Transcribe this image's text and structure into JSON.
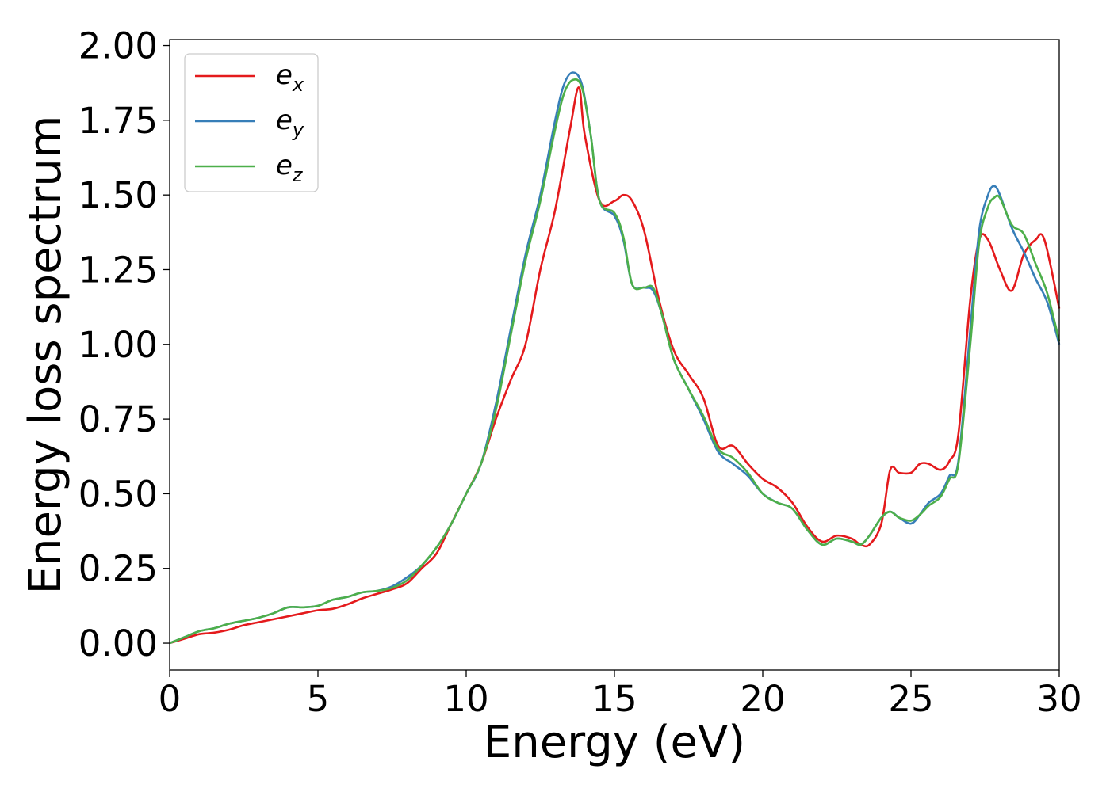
{
  "chart_data": {
    "type": "line",
    "xlabel": "Energy (eV)",
    "ylabel": "Energy loss spectrum",
    "xlim": [
      0,
      30
    ],
    "ylim": [
      -0.09,
      2.02
    ],
    "grid": false,
    "legend_position": "top-left",
    "x_ticks": [
      "0",
      "5",
      "10",
      "15",
      "20",
      "25",
      "30"
    ],
    "y_ticks": [
      "0.00",
      "0.25",
      "0.50",
      "0.75",
      "1.00",
      "1.25",
      "1.50",
      "1.75",
      "2.00"
    ],
    "series": [
      {
        "name": "e_x",
        "legend_base": "e",
        "legend_sub": "x",
        "color": "#e41a1c",
        "x": [
          0,
          0.5,
          1,
          1.5,
          2,
          2.5,
          3,
          3.5,
          4,
          4.5,
          5,
          5.5,
          6,
          6.5,
          7,
          7.5,
          8,
          8.5,
          9,
          9.5,
          10,
          10.5,
          11,
          11.5,
          12,
          12.5,
          13,
          13.5,
          13.8,
          14,
          14.5,
          15,
          15.3,
          15.6,
          16,
          16.5,
          17,
          17.5,
          18,
          18.5,
          19,
          19.5,
          20,
          20.5,
          21,
          21.5,
          22,
          22.5,
          23,
          23.3,
          23.6,
          24,
          24.3,
          24.6,
          25,
          25.3,
          25.6,
          26,
          26.3,
          26.6,
          27,
          27.3,
          27.6,
          28,
          28.4,
          28.8,
          29.2,
          29.5,
          30
        ],
        "y": [
          0,
          0.015,
          0.03,
          0.035,
          0.045,
          0.06,
          0.07,
          0.08,
          0.09,
          0.1,
          0.11,
          0.115,
          0.13,
          0.15,
          0.165,
          0.18,
          0.2,
          0.25,
          0.3,
          0.4,
          0.5,
          0.6,
          0.75,
          0.88,
          1.0,
          1.25,
          1.45,
          1.72,
          1.86,
          1.7,
          1.48,
          1.48,
          1.5,
          1.48,
          1.38,
          1.15,
          0.98,
          0.9,
          0.82,
          0.66,
          0.66,
          0.6,
          0.55,
          0.52,
          0.47,
          0.39,
          0.34,
          0.36,
          0.35,
          0.33,
          0.33,
          0.4,
          0.58,
          0.57,
          0.57,
          0.6,
          0.6,
          0.58,
          0.61,
          0.7,
          1.15,
          1.35,
          1.35,
          1.25,
          1.18,
          1.3,
          1.35,
          1.35,
          1.12
        ]
      },
      {
        "name": "e_y",
        "legend_base": "e",
        "legend_sub": "y",
        "color": "#377eb8",
        "x": [
          0,
          0.5,
          1,
          1.5,
          2,
          2.5,
          3,
          3.5,
          4,
          4.5,
          5,
          5.5,
          6,
          6.5,
          7,
          7.5,
          8,
          8.5,
          9,
          9.5,
          10,
          10.5,
          11,
          11.5,
          12,
          12.5,
          13,
          13.3,
          13.6,
          13.9,
          14.2,
          14.5,
          15,
          15.3,
          15.6,
          16,
          16.3,
          16.6,
          17,
          17.5,
          18,
          18.5,
          19,
          19.5,
          20,
          20.5,
          21,
          21.5,
          22,
          22.5,
          23,
          23.3,
          23.6,
          24,
          24.3,
          24.6,
          25,
          25.3,
          25.6,
          26,
          26.3,
          26.6,
          27,
          27.3,
          27.6,
          27.8,
          28,
          28.4,
          28.8,
          29.2,
          29.6,
          30
        ],
        "y": [
          0,
          0.02,
          0.04,
          0.05,
          0.065,
          0.075,
          0.085,
          0.1,
          0.12,
          0.12,
          0.125,
          0.145,
          0.155,
          0.17,
          0.175,
          0.19,
          0.22,
          0.26,
          0.32,
          0.4,
          0.5,
          0.6,
          0.8,
          1.05,
          1.3,
          1.5,
          1.75,
          1.87,
          1.91,
          1.87,
          1.7,
          1.48,
          1.43,
          1.35,
          1.2,
          1.19,
          1.18,
          1.1,
          0.95,
          0.85,
          0.75,
          0.64,
          0.6,
          0.56,
          0.5,
          0.47,
          0.45,
          0.38,
          0.33,
          0.35,
          0.34,
          0.33,
          0.36,
          0.42,
          0.44,
          0.42,
          0.4,
          0.43,
          0.47,
          0.5,
          0.56,
          0.61,
          1.05,
          1.38,
          1.5,
          1.53,
          1.5,
          1.39,
          1.31,
          1.22,
          1.14,
          1.0
        ]
      },
      {
        "name": "e_z",
        "legend_base": "e",
        "legend_sub": "z",
        "color": "#4daf4a",
        "x": [
          0,
          0.5,
          1,
          1.5,
          2,
          2.5,
          3,
          3.5,
          4,
          4.5,
          5,
          5.5,
          6,
          6.5,
          7,
          7.5,
          8,
          8.5,
          9,
          9.5,
          10,
          10.5,
          11,
          11.5,
          12,
          12.5,
          13,
          13.3,
          13.6,
          13.9,
          14.2,
          14.5,
          15,
          15.3,
          15.6,
          16,
          16.3,
          16.6,
          17,
          17.5,
          18,
          18.5,
          19,
          19.5,
          20,
          20.5,
          21,
          21.5,
          22,
          22.5,
          23,
          23.3,
          23.6,
          24,
          24.3,
          24.6,
          25,
          25.3,
          25.6,
          26,
          26.3,
          26.6,
          27,
          27.3,
          27.6,
          27.8,
          28,
          28.4,
          28.8,
          29.2,
          29.6,
          30
        ],
        "y": [
          0,
          0.02,
          0.04,
          0.05,
          0.065,
          0.075,
          0.085,
          0.1,
          0.12,
          0.12,
          0.125,
          0.145,
          0.155,
          0.17,
          0.175,
          0.185,
          0.21,
          0.26,
          0.32,
          0.4,
          0.5,
          0.6,
          0.78,
          1.03,
          1.28,
          1.48,
          1.72,
          1.84,
          1.885,
          1.86,
          1.7,
          1.48,
          1.44,
          1.36,
          1.2,
          1.19,
          1.19,
          1.1,
          0.95,
          0.85,
          0.76,
          0.65,
          0.62,
          0.57,
          0.5,
          0.47,
          0.45,
          0.38,
          0.33,
          0.35,
          0.34,
          0.33,
          0.36,
          0.42,
          0.44,
          0.42,
          0.41,
          0.43,
          0.46,
          0.49,
          0.55,
          0.6,
          1.0,
          1.34,
          1.46,
          1.49,
          1.49,
          1.4,
          1.37,
          1.27,
          1.17,
          1.01
        ]
      }
    ]
  }
}
